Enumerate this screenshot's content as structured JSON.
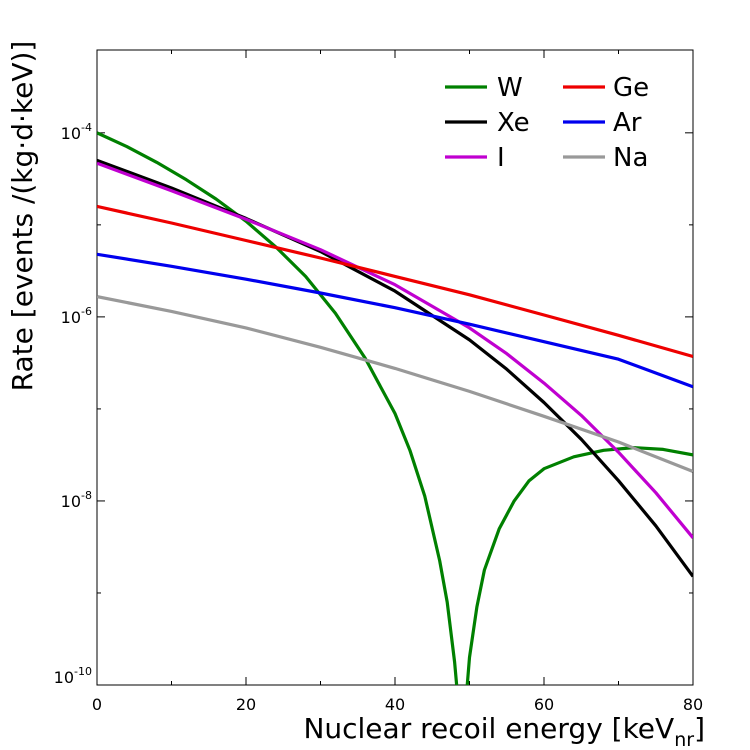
{
  "chart_data": {
    "type": "line",
    "title": "",
    "xlabel": "Nuclear recoil energy [keV",
    "xlabel_sub": "nr",
    "xlabel_close": "]",
    "ylabel": "Rate [events /(kg·d·keV)]",
    "xlim": [
      0,
      80
    ],
    "ylim_log10": [
      -10,
      -3.1
    ],
    "yscale": "log",
    "x_ticks": [
      {
        "value": 0,
        "label": "0"
      },
      {
        "value": 20,
        "label": "20"
      },
      {
        "value": 40,
        "label": "40"
      },
      {
        "value": 60,
        "label": "60"
      },
      {
        "value": 80,
        "label": "80"
      }
    ],
    "y_ticks": [
      {
        "value": -4,
        "base": "10",
        "exp": "-4"
      },
      {
        "value": -6,
        "base": "10",
        "exp": "-6"
      },
      {
        "value": -8,
        "base": "10",
        "exp": "-8"
      },
      {
        "value": -10,
        "base": "10",
        "exp": "-10"
      }
    ],
    "legend_position": "top-right",
    "series": [
      {
        "name": "W",
        "color": "#008000",
        "x": [
          0,
          4,
          8,
          12,
          16,
          20,
          24,
          28,
          32,
          36,
          40,
          42,
          44,
          46,
          47,
          48,
          48.6,
          49,
          49.4,
          50,
          51,
          52,
          54,
          56,
          58,
          60,
          64,
          68,
          72,
          76,
          80
        ],
        "log10": [
          -4.0,
          -4.15,
          -4.32,
          -4.51,
          -4.72,
          -4.96,
          -5.24,
          -5.56,
          -5.96,
          -6.45,
          -7.05,
          -7.45,
          -7.95,
          -8.65,
          -9.1,
          -9.75,
          -10.3,
          -10.6,
          -10.3,
          -9.7,
          -9.15,
          -8.75,
          -8.3,
          -8.0,
          -7.78,
          -7.65,
          -7.52,
          -7.45,
          -7.42,
          -7.44,
          -7.5
        ]
      },
      {
        "name": "Xe",
        "color": "#000000",
        "x": [
          0,
          10,
          20,
          30,
          40,
          50,
          55,
          60,
          65,
          70,
          75,
          80
        ],
        "log10": [
          -4.3,
          -4.6,
          -4.93,
          -5.29,
          -5.72,
          -6.25,
          -6.57,
          -6.93,
          -7.33,
          -7.78,
          -8.27,
          -8.82
        ]
      },
      {
        "name": "I",
        "color": "#c000d0",
        "x": [
          0,
          10,
          20,
          30,
          40,
          50,
          55,
          60,
          65,
          70,
          75,
          80
        ],
        "log10": [
          -4.33,
          -4.63,
          -4.94,
          -5.27,
          -5.65,
          -6.12,
          -6.4,
          -6.72,
          -7.07,
          -7.47,
          -7.91,
          -8.4
        ]
      },
      {
        "name": "Ge",
        "color": "#ee0000",
        "x": [
          0,
          10,
          20,
          30,
          40,
          50,
          60,
          70,
          80
        ],
        "log10": [
          -4.8,
          -4.98,
          -5.17,
          -5.36,
          -5.56,
          -5.76,
          -5.98,
          -6.2,
          -6.43
        ]
      },
      {
        "name": "Ar",
        "color": "#0000ee",
        "x": [
          0,
          10,
          20,
          30,
          40,
          50,
          60,
          70,
          80
        ],
        "log10": [
          -5.32,
          -5.45,
          -5.59,
          -5.74,
          -5.9,
          -6.08,
          -6.27,
          -6.46,
          -6.76
        ]
      },
      {
        "name": "Na",
        "color": "#999999",
        "x": [
          0,
          10,
          20,
          30,
          40,
          50,
          60,
          70,
          80
        ],
        "log10": [
          -5.78,
          -5.94,
          -6.12,
          -6.33,
          -6.56,
          -6.81,
          -7.08,
          -7.36,
          -7.68
        ]
      }
    ]
  }
}
